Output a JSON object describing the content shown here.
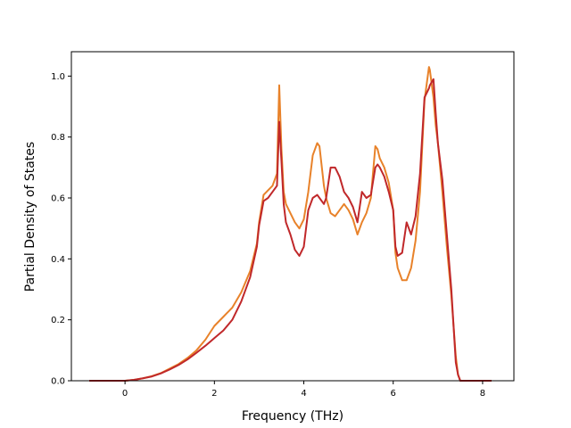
{
  "chart_data": {
    "type": "line",
    "title": "",
    "xlabel": "Frequency (THz)",
    "ylabel": "Partial Density of States",
    "xlim": [
      -1.2,
      8.7
    ],
    "ylim": [
      0.0,
      1.08
    ],
    "xticks": [
      0,
      2,
      4,
      6,
      8
    ],
    "yticks": [
      0.0,
      0.2,
      0.4,
      0.6,
      0.8,
      1.0
    ],
    "grid": false,
    "colors": {
      "series_1": "#e8822a",
      "series_2": "#c0282a"
    },
    "series": [
      {
        "x": [
          -0.8,
          0.0,
          0.2,
          0.4,
          0.6,
          0.8,
          1.0,
          1.2,
          1.4,
          1.6,
          1.8,
          2.0,
          2.2,
          2.4,
          2.6,
          2.8,
          2.95,
          3.0,
          3.1,
          3.2,
          3.3,
          3.4,
          3.45,
          3.5,
          3.55,
          3.6,
          3.7,
          3.8,
          3.9,
          4.0,
          4.1,
          4.2,
          4.3,
          4.35,
          4.45,
          4.5,
          4.6,
          4.7,
          4.8,
          4.9,
          5.0,
          5.1,
          5.2,
          5.3,
          5.4,
          5.5,
          5.6,
          5.65,
          5.7,
          5.8,
          5.9,
          6.0,
          6.05,
          6.1,
          6.2,
          6.3,
          6.4,
          6.5,
          6.6,
          6.7,
          6.8,
          6.82,
          6.9,
          6.95,
          7.0,
          7.1,
          7.2,
          7.3,
          7.4,
          7.45,
          7.5,
          7.6,
          8.2
        ],
        "values": [
          0.0,
          0.0,
          0.003,
          0.008,
          0.015,
          0.025,
          0.04,
          0.055,
          0.075,
          0.1,
          0.135,
          0.18,
          0.21,
          0.24,
          0.29,
          0.36,
          0.45,
          0.52,
          0.61,
          0.625,
          0.64,
          0.68,
          0.97,
          0.76,
          0.62,
          0.58,
          0.55,
          0.52,
          0.5,
          0.53,
          0.62,
          0.74,
          0.78,
          0.77,
          0.64,
          0.6,
          0.55,
          0.54,
          0.56,
          0.58,
          0.56,
          0.53,
          0.48,
          0.52,
          0.55,
          0.6,
          0.77,
          0.76,
          0.73,
          0.7,
          0.65,
          0.56,
          0.42,
          0.37,
          0.33,
          0.33,
          0.37,
          0.46,
          0.62,
          0.92,
          1.03,
          1.02,
          0.93,
          0.84,
          0.78,
          0.62,
          0.44,
          0.28,
          0.08,
          0.02,
          0.0,
          0.0,
          0.0
        ]
      },
      {
        "x": [
          -0.8,
          0.0,
          0.2,
          0.4,
          0.6,
          0.8,
          1.0,
          1.2,
          1.4,
          1.6,
          1.8,
          2.0,
          2.2,
          2.4,
          2.6,
          2.8,
          2.95,
          3.0,
          3.1,
          3.2,
          3.3,
          3.4,
          3.45,
          3.5,
          3.55,
          3.6,
          3.7,
          3.8,
          3.9,
          4.0,
          4.1,
          4.2,
          4.3,
          4.35,
          4.45,
          4.5,
          4.6,
          4.7,
          4.8,
          4.9,
          5.0,
          5.1,
          5.2,
          5.3,
          5.4,
          5.5,
          5.6,
          5.65,
          5.7,
          5.8,
          5.9,
          6.0,
          6.05,
          6.1,
          6.2,
          6.3,
          6.4,
          6.5,
          6.6,
          6.7,
          6.8,
          6.82,
          6.9,
          6.95,
          7.0,
          7.1,
          7.2,
          7.3,
          7.4,
          7.45,
          7.5,
          7.6,
          8.2
        ],
        "values": [
          0.0,
          0.0,
          0.003,
          0.008,
          0.014,
          0.024,
          0.037,
          0.052,
          0.07,
          0.092,
          0.115,
          0.14,
          0.165,
          0.2,
          0.26,
          0.34,
          0.44,
          0.51,
          0.59,
          0.6,
          0.62,
          0.64,
          0.85,
          0.72,
          0.58,
          0.52,
          0.48,
          0.43,
          0.41,
          0.44,
          0.56,
          0.6,
          0.61,
          0.6,
          0.58,
          0.6,
          0.7,
          0.7,
          0.67,
          0.62,
          0.6,
          0.57,
          0.52,
          0.62,
          0.6,
          0.61,
          0.7,
          0.71,
          0.7,
          0.67,
          0.62,
          0.56,
          0.44,
          0.41,
          0.42,
          0.52,
          0.48,
          0.54,
          0.68,
          0.93,
          0.96,
          0.97,
          0.99,
          0.88,
          0.78,
          0.66,
          0.48,
          0.3,
          0.06,
          0.02,
          0.0,
          0.0,
          0.0
        ]
      }
    ]
  }
}
